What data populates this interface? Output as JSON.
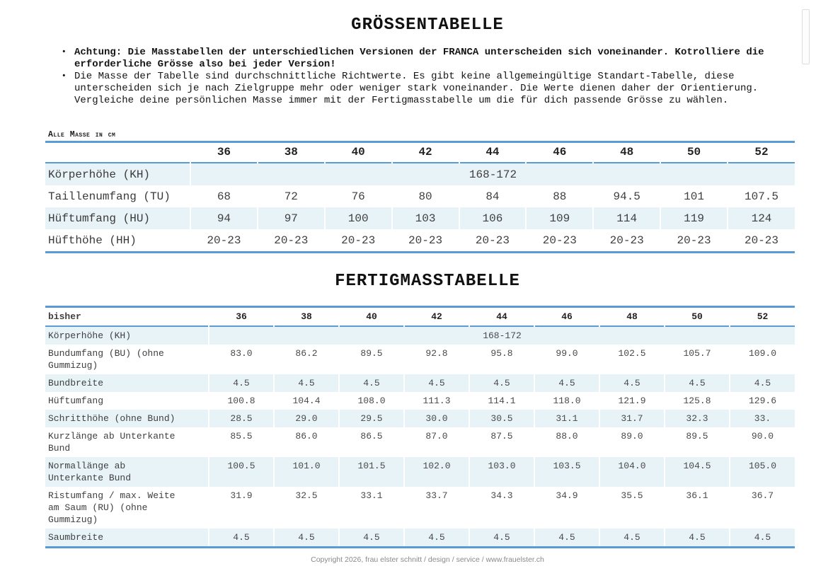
{
  "intro": {
    "title": "GRÖSSENTABELLE",
    "bullets": [
      {
        "text": "Achtung: Die Masstabellen der unterschiedlichen Versionen der FRANCA unterscheiden sich voneinander. Kotrolliere die erforderliche Grösse also bei jeder Version!",
        "bold": true
      },
      {
        "text": "Die Masse der Tabelle sind durchschnittliche Richtwerte. Es gibt keine allgemeingültige Standart-Tabelle, diese unterscheiden sich je nach Zielgruppe mehr oder weniger stark voneinander. Die Werte dienen daher der Orientierung. Vergleiche deine persönlichen Masse immer mit der Fertigmasstabelle um die für dich passende Grösse zu wählen.",
        "bold": false
      }
    ]
  },
  "size_table": {
    "caption": "Alle Masse in cm",
    "corner_label": "",
    "columns": [
      "36",
      "38",
      "40",
      "42",
      "44",
      "46",
      "48",
      "50",
      "52"
    ],
    "rows": [
      {
        "label": "Körperhöhe (KH)",
        "span_value": "168-172"
      },
      {
        "label": "Taillenumfang (TU)",
        "values": [
          "68",
          "72",
          "76",
          "80",
          "84",
          "88",
          "94.5",
          "101",
          "107.5"
        ]
      },
      {
        "label": "Hüftumfang (HU)",
        "values": [
          "94",
          "97",
          "100",
          "103",
          "106",
          "109",
          "114",
          "119",
          "124"
        ]
      },
      {
        "label": "Hüfthöhe (HH)",
        "values": [
          "20-23",
          "20-23",
          "20-23",
          "20-23",
          "20-23",
          "20-23",
          "20-23",
          "20-23",
          "20-23"
        ]
      }
    ]
  },
  "finished_table": {
    "title": "FERTIGMASSTABELLE",
    "corner_label": "bisher",
    "columns": [
      "36",
      "38",
      "40",
      "42",
      "44",
      "46",
      "48",
      "50",
      "52"
    ],
    "rows": [
      {
        "label": "Körperhöhe (KH)",
        "span_value": "168-172"
      },
      {
        "label": "Bundumfang (BU) (ohne Gummizug)",
        "values": [
          "83.0",
          "86.2",
          "89.5",
          "92.8",
          "95.8",
          "99.0",
          "102.5",
          "105.7",
          "109.0"
        ]
      },
      {
        "label": "Bundbreite",
        "values": [
          "4.5",
          "4.5",
          "4.5",
          "4.5",
          "4.5",
          "4.5",
          "4.5",
          "4.5",
          "4.5"
        ]
      },
      {
        "label": "Hüftumfang",
        "values": [
          "100.8",
          "104.4",
          "108.0",
          "111.3",
          "114.1",
          "118.0",
          "121.9",
          "125.8",
          "129.6"
        ]
      },
      {
        "label": "Schritthöhe (ohne Bund)",
        "values": [
          "28.5",
          "29.0",
          "29.5",
          "30.0",
          "30.5",
          "31.1",
          "31.7",
          "32.3",
          "33."
        ]
      },
      {
        "label": "Kurzlänge ab Unterkante Bund",
        "values": [
          "85.5",
          "86.0",
          "86.5",
          "87.0",
          "87.5",
          "88.0",
          "89.0",
          "89.5",
          "90.0"
        ]
      },
      {
        "label": "Normallänge ab Unterkante Bund",
        "values": [
          "100.5",
          "101.0",
          "101.5",
          "102.0",
          "103.0",
          "103.5",
          "104.0",
          "104.5",
          "105.0"
        ]
      },
      {
        "label": "Ristumfang / max. Weite am Saum (RU) (ohne Gummizug)",
        "values": [
          "31.9",
          "32.5",
          "33.1",
          "33.7",
          "34.3",
          "34.9",
          "35.5",
          "36.1",
          "36.7"
        ]
      },
      {
        "label": "Saumbreite",
        "values": [
          "4.5",
          "4.5",
          "4.5",
          "4.5",
          "4.5",
          "4.5",
          "4.5",
          "4.5",
          "4.5"
        ]
      }
    ]
  },
  "footer": {
    "text": "Copyright 2026, frau elster schnitt / design / service / www.frauelster.ch"
  },
  "colors": {
    "accent_blue": "#5b9bd5",
    "row_shade": "#e8f3f8"
  }
}
